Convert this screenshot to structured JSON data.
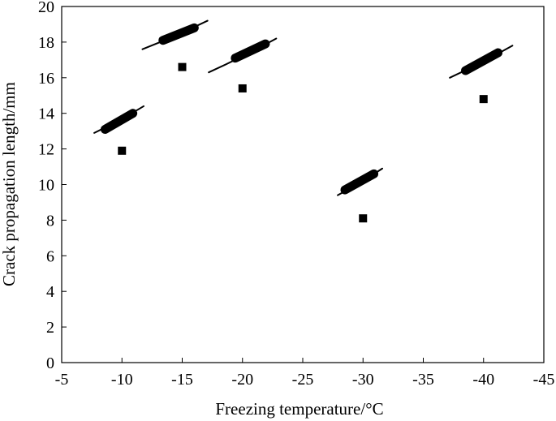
{
  "chart_data": {
    "type": "scatter",
    "title": "",
    "xlabel": "Freezing temperature/°C",
    "ylabel": "Crack propagation length/mm",
    "xlim": [
      -5,
      -45
    ],
    "ylim": [
      0,
      20
    ],
    "x_axis_reversed": true,
    "x_ticks": [
      -5,
      -10,
      -15,
      -20,
      -25,
      -30,
      -35,
      -40,
      -45
    ],
    "y_ticks": [
      0,
      2,
      4,
      6,
      8,
      10,
      12,
      14,
      16,
      18,
      20
    ],
    "x_tick_labels": [
      "-5",
      "-10",
      "-15",
      "-20",
      "-25",
      "-30",
      "-35",
      "-40",
      "-45"
    ],
    "y_tick_labels": [
      "0",
      "2",
      "4",
      "6",
      "8",
      "10",
      "12",
      "14",
      "16",
      "18",
      "20"
    ],
    "grid": false,
    "legend": "none",
    "marker": "square",
    "marker_color": "#000000",
    "points": [
      {
        "x": -10,
        "y": 11.9
      },
      {
        "x": -15,
        "y": 16.6
      },
      {
        "x": -20,
        "y": 15.4
      },
      {
        "x": -30,
        "y": 8.1
      },
      {
        "x": -40,
        "y": 14.8
      }
    ],
    "crack_glyphs": [
      {
        "near_x": -10,
        "x1": -7.7,
        "y1": 12.9,
        "x2": -11.8,
        "y2": 14.4,
        "bx1": -8.6,
        "by1": 13.1,
        "bx2": -10.9,
        "by2": 14.0
      },
      {
        "near_x": -15,
        "x1": -11.7,
        "y1": 17.6,
        "x2": -17.1,
        "y2": 19.2,
        "bx1": -13.4,
        "by1": 18.1,
        "bx2": -16.0,
        "by2": 18.8
      },
      {
        "near_x": -20,
        "x1": -17.2,
        "y1": 16.3,
        "x2": -22.8,
        "y2": 18.2,
        "bx1": -19.4,
        "by1": 17.1,
        "bx2": -21.9,
        "by2": 17.9
      },
      {
        "near_x": -30,
        "x1": -27.9,
        "y1": 9.4,
        "x2": -31.6,
        "y2": 10.9,
        "bx1": -28.5,
        "by1": 9.7,
        "bx2": -30.9,
        "by2": 10.6
      },
      {
        "near_x": -40,
        "x1": -37.2,
        "y1": 16.0,
        "x2": -42.4,
        "y2": 17.8,
        "bx1": -38.5,
        "by1": 16.4,
        "bx2": -41.2,
        "by2": 17.4
      }
    ]
  }
}
